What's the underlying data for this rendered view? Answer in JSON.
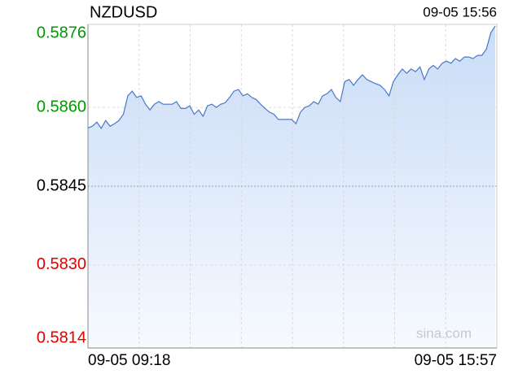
{
  "chart_data": {
    "type": "line",
    "title": "NZDUSD",
    "timestamp": "09-05 15:56",
    "x_labels": [
      "09-05 09:18",
      "09-05 15:57"
    ],
    "watermark": "sina.com",
    "color": "#4a78c8",
    "ylim": [
      0.58142,
      0.58758
    ],
    "yticks": [
      {
        "value": 0.58758,
        "label": "0.5876"
      },
      {
        "value": 0.586,
        "label": "0.5860"
      },
      {
        "value": 0.5845,
        "label": "0.5845"
      },
      {
        "value": 0.583,
        "label": "0.5830"
      },
      {
        "value": 0.58142,
        "label": "0.5814"
      }
    ],
    "grid": true,
    "values": [
      0.58561,
      0.58564,
      0.58572,
      0.5856,
      0.58575,
      0.58564,
      0.58569,
      0.58575,
      0.58587,
      0.58622,
      0.58631,
      0.58619,
      0.58622,
      0.58606,
      0.58595,
      0.58606,
      0.58611,
      0.58606,
      0.58606,
      0.58606,
      0.58611,
      0.58598,
      0.58598,
      0.58603,
      0.58587,
      0.58595,
      0.58583,
      0.58603,
      0.58606,
      0.586,
      0.58606,
      0.58609,
      0.58619,
      0.58631,
      0.58634,
      0.58622,
      0.58626,
      0.58619,
      0.58615,
      0.58606,
      0.58598,
      0.58591,
      0.58587,
      0.58577,
      0.58577,
      0.58577,
      0.58577,
      0.58569,
      0.58591,
      0.586,
      0.58603,
      0.58611,
      0.58606,
      0.58622,
      0.58626,
      0.58634,
      0.58619,
      0.58611,
      0.58649,
      0.58653,
      0.58642,
      0.58653,
      0.58662,
      0.58653,
      0.58649,
      0.58645,
      0.58642,
      0.58634,
      0.58622,
      0.58649,
      0.58662,
      0.58673,
      0.58665,
      0.58673,
      0.58668,
      0.58677,
      0.58653,
      0.58673,
      0.5868,
      0.58673,
      0.58684,
      0.58688,
      0.58684,
      0.58693,
      0.58688,
      0.58696,
      0.58696,
      0.58693,
      0.58699,
      0.58699,
      0.58711,
      0.58742,
      0.58755
    ]
  }
}
